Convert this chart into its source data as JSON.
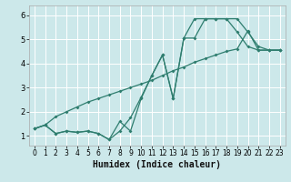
{
  "xlabel": "Humidex (Indice chaleur)",
  "bg_color": "#cce8ea",
  "grid_color": "#ffffff",
  "line_color": "#2e7d6e",
  "xlim": [
    -0.5,
    23.5
  ],
  "ylim": [
    0.6,
    6.4
  ],
  "yticks": [
    1,
    2,
    3,
    4,
    5,
    6
  ],
  "xticks": [
    0,
    1,
    2,
    3,
    4,
    5,
    6,
    7,
    8,
    9,
    10,
    11,
    12,
    13,
    14,
    15,
    16,
    17,
    18,
    19,
    20,
    21,
    22,
    23
  ],
  "curve1_x": [
    0,
    1,
    2,
    3,
    4,
    5,
    6,
    7,
    8,
    9,
    10,
    11,
    12,
    13,
    14,
    15,
    16,
    17,
    18,
    19,
    20,
    21,
    22,
    23
  ],
  "curve1_y": [
    1.3,
    1.45,
    1.1,
    1.2,
    1.15,
    1.2,
    1.1,
    0.85,
    1.2,
    1.75,
    2.6,
    3.5,
    4.35,
    2.55,
    5.05,
    5.05,
    5.85,
    5.85,
    5.85,
    5.85,
    5.3,
    4.7,
    4.55,
    4.55
  ],
  "curve2_x": [
    0,
    1,
    2,
    3,
    4,
    5,
    6,
    7,
    8,
    9,
    10,
    11,
    12,
    13,
    14,
    15,
    16,
    17,
    18,
    19,
    20,
    21,
    22,
    23
  ],
  "curve2_y": [
    1.3,
    1.45,
    1.1,
    1.2,
    1.15,
    1.2,
    1.1,
    0.85,
    1.6,
    1.2,
    2.55,
    3.5,
    4.35,
    2.55,
    5.05,
    5.85,
    5.85,
    5.85,
    5.85,
    5.3,
    4.7,
    4.55,
    4.55,
    4.55
  ],
  "curve3_x": [
    0,
    1,
    2,
    3,
    4,
    5,
    6,
    7,
    8,
    9,
    10,
    11,
    12,
    13,
    14,
    15,
    16,
    17,
    18,
    19,
    20,
    21,
    22,
    23
  ],
  "curve3_y": [
    1.3,
    1.45,
    1.8,
    2.0,
    2.2,
    2.4,
    2.55,
    2.7,
    2.85,
    3.0,
    3.15,
    3.3,
    3.5,
    3.7,
    3.85,
    4.05,
    4.2,
    4.35,
    4.5,
    4.6,
    5.35,
    4.55,
    4.55,
    4.55
  ]
}
